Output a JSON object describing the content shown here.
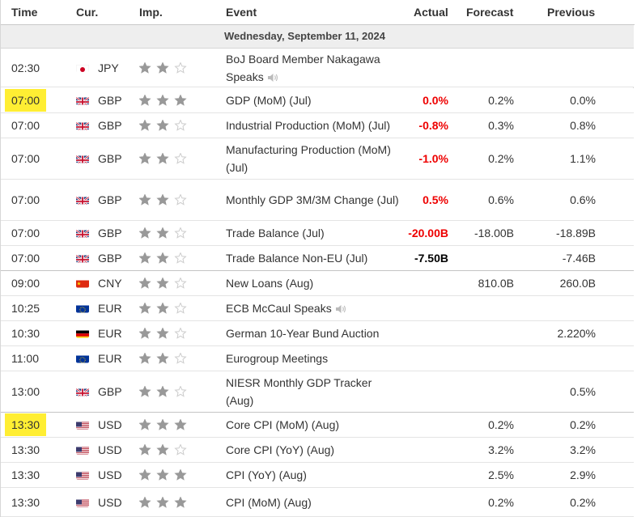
{
  "header": {
    "time": "Time",
    "cur": "Cur.",
    "imp": "Imp.",
    "event": "Event",
    "actual": "Actual",
    "forecast": "Forecast",
    "previous": "Previous"
  },
  "date": "Wednesday, September 11, 2024",
  "colors": {
    "actual_red": "#ee0000",
    "highlight": "#ffee33",
    "star_filled": "#999999",
    "star_empty": "#cccccc"
  },
  "rows": [
    {
      "time": "02:30",
      "cur": "JPY",
      "flag": "jp",
      "imp": 2,
      "event": "BoJ Board Member Nakagawa Speaks",
      "speech": true,
      "actual": "",
      "forecast": "",
      "previous": ""
    },
    {
      "time": "07:00",
      "cur": "GBP",
      "flag": "gb",
      "imp": 3,
      "event": "GDP (MoM) (Jul)",
      "actual": "0.0%",
      "actual_color": "red",
      "forecast": "0.2%",
      "previous": "0.0%",
      "highlight": true
    },
    {
      "time": "07:00",
      "cur": "GBP",
      "flag": "gb",
      "imp": 2,
      "event": "Industrial Production (MoM) (Jul)",
      "actual": "-0.8%",
      "actual_color": "red",
      "forecast": "0.3%",
      "previous": "0.8%"
    },
    {
      "time": "07:00",
      "cur": "GBP",
      "flag": "gb",
      "imp": 2,
      "event": "Manufacturing Production (MoM) (Jul)",
      "actual": "-1.0%",
      "actual_color": "red",
      "forecast": "0.2%",
      "previous": "1.1%"
    },
    {
      "time": "07:00",
      "cur": "GBP",
      "flag": "gb",
      "imp": 2,
      "event": "Monthly GDP 3M/3M Change (Jul)",
      "actual": "0.5%",
      "actual_color": "red",
      "forecast": "0.6%",
      "previous": "0.6%"
    },
    {
      "time": "07:00",
      "cur": "GBP",
      "flag": "gb",
      "imp": 2,
      "event": "Trade Balance (Jul)",
      "actual": "-20.00B",
      "actual_color": "red",
      "forecast": "-18.00B",
      "previous": "-18.89B"
    },
    {
      "time": "07:00",
      "cur": "GBP",
      "flag": "gb",
      "imp": 2,
      "event": "Trade Balance Non-EU (Jul)",
      "actual": "-7.50B",
      "actual_color": "black",
      "forecast": "",
      "previous": "-7.46B"
    },
    {
      "time": "09:00",
      "cur": "CNY",
      "flag": "cn",
      "imp": 2,
      "event": "New Loans (Aug)",
      "actual": "",
      "forecast": "810.0B",
      "previous": "260.0B"
    },
    {
      "time": "10:25",
      "cur": "EUR",
      "flag": "eu",
      "imp": 2,
      "event": "ECB McCaul Speaks",
      "speech": true,
      "actual": "",
      "forecast": "",
      "previous": ""
    },
    {
      "time": "10:30",
      "cur": "EUR",
      "flag": "de",
      "imp": 2,
      "event": "German 10-Year Bund Auction",
      "actual": "",
      "forecast": "",
      "previous": "2.220%"
    },
    {
      "time": "11:00",
      "cur": "EUR",
      "flag": "eu",
      "imp": 2,
      "event": "Eurogroup Meetings",
      "actual": "",
      "forecast": "",
      "previous": ""
    },
    {
      "time": "13:00",
      "cur": "GBP",
      "flag": "gb",
      "imp": 2,
      "event": "NIESR Monthly GDP Tracker (Aug)",
      "actual": "",
      "forecast": "",
      "previous": "0.5%"
    },
    {
      "time": "13:30",
      "cur": "USD",
      "flag": "us",
      "imp": 3,
      "event": "Core CPI (MoM) (Aug)",
      "actual": "",
      "forecast": "0.2%",
      "previous": "0.2%",
      "highlight": true
    },
    {
      "time": "13:30",
      "cur": "USD",
      "flag": "us",
      "imp": 2,
      "event": "Core CPI (YoY) (Aug)",
      "actual": "",
      "forecast": "3.2%",
      "previous": "3.2%"
    },
    {
      "time": "13:30",
      "cur": "USD",
      "flag": "us",
      "imp": 3,
      "event": "CPI (YoY) (Aug)",
      "actual": "",
      "forecast": "2.5%",
      "previous": "2.9%"
    },
    {
      "time": "13:30",
      "cur": "USD",
      "flag": "us",
      "imp": 3,
      "event": "CPI (MoM) (Aug)",
      "actual": "",
      "forecast": "0.2%",
      "previous": "0.2%"
    }
  ]
}
